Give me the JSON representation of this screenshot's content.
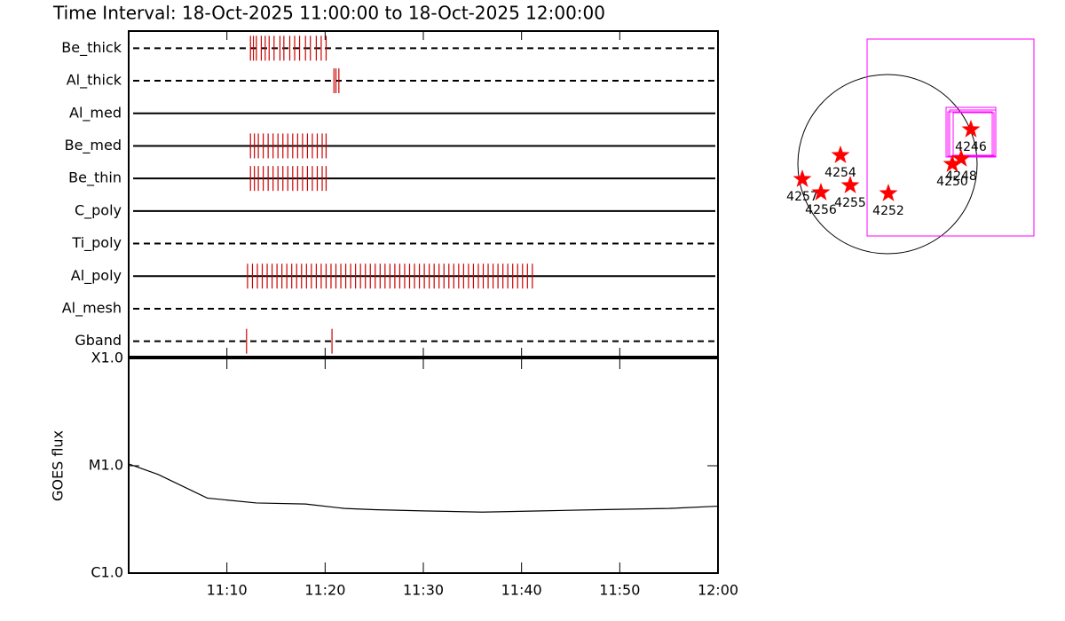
{
  "chart_data": [
    {
      "type": "timeline",
      "title": "Time Interval: 18-Oct-2025 11:00:00 to 18-Oct-2025 12:00:00",
      "xlim": [
        0,
        60
      ],
      "series": [
        {
          "name": "Be_thick",
          "style": "dashed",
          "color": "#cc0000",
          "x": [
            12.4,
            12.7,
            13.0,
            13.5,
            13.9,
            14.3,
            14.8,
            15.4,
            15.8,
            16.4,
            16.9,
            17.4,
            18.0,
            18.5,
            19.1,
            19.6,
            20.1
          ]
        },
        {
          "name": "Al_thick",
          "style": "dashed",
          "color": "#cc0000",
          "x": [
            20.9,
            21.1,
            21.4
          ]
        },
        {
          "name": "Al_med",
          "style": "solid",
          "color": "#cc0000",
          "x": []
        },
        {
          "name": "Be_med",
          "style": "solid",
          "color": "#cc0000",
          "x": [
            12.4,
            12.8,
            13.2,
            13.7,
            14.2,
            14.7,
            15.2,
            15.7,
            16.2,
            16.7,
            17.2,
            17.7,
            18.2,
            18.7,
            19.2,
            19.7,
            20.1
          ]
        },
        {
          "name": "Be_thin",
          "style": "solid",
          "color": "#cc0000",
          "x": [
            12.4,
            12.8,
            13.2,
            13.7,
            14.2,
            14.7,
            15.2,
            15.7,
            16.2,
            16.7,
            17.2,
            17.7,
            18.2,
            18.7,
            19.2,
            19.7,
            20.1
          ]
        },
        {
          "name": "C_poly",
          "style": "solid",
          "color": "#cc0000",
          "x": []
        },
        {
          "name": "Ti_poly",
          "style": "dashed",
          "color": "#cc0000",
          "x": []
        },
        {
          "name": "Al_poly",
          "style": "solid",
          "color": "#cc0000",
          "x": [
            12.1,
            12.6,
            13.1,
            13.6,
            14.1,
            14.6,
            15.1,
            15.6,
            16.1,
            16.6,
            17.1,
            17.6,
            18.1,
            18.6,
            19.1,
            19.6,
            20.1,
            20.6,
            21.1,
            21.6,
            22.1,
            22.6,
            23.1,
            23.6,
            24.1,
            24.6,
            25.1,
            25.6,
            26.1,
            26.6,
            27.1,
            27.6,
            28.1,
            28.6,
            29.1,
            29.6,
            30.1,
            30.6,
            31.1,
            31.6,
            32.1,
            32.6,
            33.1,
            33.6,
            34.1,
            34.6,
            35.1,
            35.6,
            36.1,
            36.6,
            37.1,
            37.6,
            38.1,
            38.6,
            39.1,
            39.6,
            40.1,
            40.6,
            41.1
          ]
        },
        {
          "name": "Al_mesh",
          "style": "dashed",
          "color": "#cc0000",
          "x": []
        },
        {
          "name": "Gband",
          "style": "dashed",
          "color": "#cc0000",
          "x": [
            12.0,
            20.7
          ]
        }
      ]
    },
    {
      "type": "line",
      "ylabel": "GOES flux",
      "log_scale": true,
      "color": "#000000",
      "x": [
        0,
        3,
        8,
        13,
        18,
        22,
        25,
        30,
        36,
        42,
        48,
        55,
        60
      ],
      "values": [
        1.04e-05,
        8.3e-06,
        5e-06,
        4.5e-06,
        4.4e-06,
        4e-06,
        3.9e-06,
        3.8e-06,
        3.7e-06,
        3.8e-06,
        3.9e-06,
        4e-06,
        4.2e-06
      ],
      "xlim": [
        0,
        60
      ],
      "xticks": [
        {
          "value": 10,
          "label": "11:10"
        },
        {
          "value": 20,
          "label": "11:20"
        },
        {
          "value": 30,
          "label": "11:30"
        },
        {
          "value": 40,
          "label": "11:40"
        },
        {
          "value": 50,
          "label": "11:50"
        },
        {
          "value": 60,
          "label": "12:00"
        }
      ],
      "ylim": [
        1e-06,
        0.0001
      ],
      "yticks": [
        {
          "value": 1e-06,
          "label": "C1.0"
        },
        {
          "value": 1e-05,
          "label": "M1.0"
        },
        {
          "value": 0.0001,
          "label": "X1.0"
        }
      ]
    },
    {
      "type": "map",
      "color": "#ff0000",
      "box_color": "#ff00ff",
      "regions": [
        "4257",
        "4256",
        "4254",
        "4255",
        "4252",
        "4246",
        "4248",
        "4250"
      ]
    }
  ]
}
